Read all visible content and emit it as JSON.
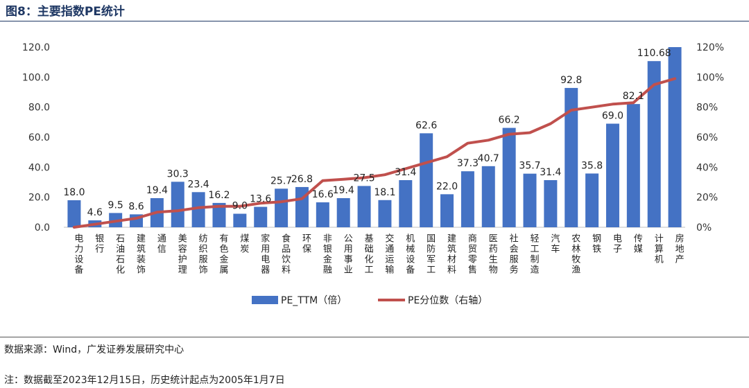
{
  "figure": {
    "title": "图8：主要指数PE统计",
    "source": "数据来源：Wind，广发证券发展研究中心",
    "note": "注：数据截至2023年12月15日，历史统计起点为2005年1月7日"
  },
  "colors": {
    "bar": "#4472c4",
    "line": "#c0504d",
    "title": "#1f3864"
  },
  "chart_data": {
    "type": "bar",
    "title": "",
    "xlabel": "",
    "ylabel": "",
    "ylim": [
      0,
      120
    ],
    "y2lim": [
      0,
      1.2
    ],
    "yticks": [
      "0.0",
      "20.0",
      "40.0",
      "60.0",
      "80.0",
      "100.0",
      "120.0"
    ],
    "y2ticks": [
      "0%",
      "20%",
      "40%",
      "60%",
      "80%",
      "100%",
      "120%"
    ],
    "grid": false,
    "legend_position": "bottom",
    "categories": [
      "电力设备",
      "银行",
      "石油石化",
      "建筑装饰",
      "通信",
      "美容护理",
      "纺织服饰",
      "有色金属",
      "煤炭",
      "家用电器",
      "食品饮料",
      "环保",
      "非银金融",
      "公用事业",
      "基础化工",
      "交通运输",
      "机械设备",
      "国防军工",
      "建筑材料",
      "商贸零售",
      "医药生物",
      "社会服务",
      "轻工制造",
      "汽车",
      "农林牧渔",
      "钢铁",
      "电子",
      "传媒",
      "计算机",
      "房地产"
    ],
    "series": [
      {
        "name": "PE_TTM（倍）",
        "type": "bar",
        "axis": "left",
        "values": [
          18.0,
          4.6,
          9.5,
          8.6,
          19.4,
          30.3,
          23.4,
          16.2,
          9.0,
          13.6,
          25.7,
          26.8,
          16.6,
          19.4,
          27.5,
          18.1,
          31.4,
          62.6,
          22.0,
          37.3,
          40.7,
          66.2,
          35.7,
          31.4,
          92.8,
          35.8,
          69.0,
          82.1,
          110.68,
          120.0
        ],
        "labels": [
          "18.0",
          "4.6",
          "9.5",
          "8.6",
          "19.4",
          "30.3",
          "23.4",
          "16.2",
          "9.0",
          "13.6",
          "25.7",
          "26.8",
          "16.6",
          "19.4",
          "27.5",
          "18.1",
          "31.4",
          "62.6",
          "22.0",
          "37.3",
          "40.7",
          "66.2",
          "35.7",
          "31.4",
          "92.8",
          "35.8",
          "69.0",
          "82.1",
          "110.68",
          ""
        ]
      },
      {
        "name": "PE分位数（右轴）",
        "type": "line",
        "axis": "right",
        "values": [
          0.0,
          0.02,
          0.04,
          0.06,
          0.1,
          0.11,
          0.13,
          0.14,
          0.14,
          0.16,
          0.17,
          0.19,
          0.31,
          0.32,
          0.33,
          0.35,
          0.39,
          0.43,
          0.47,
          0.56,
          0.58,
          0.62,
          0.63,
          0.69,
          0.78,
          0.8,
          0.82,
          0.83,
          0.95,
          0.99
        ]
      }
    ]
  }
}
